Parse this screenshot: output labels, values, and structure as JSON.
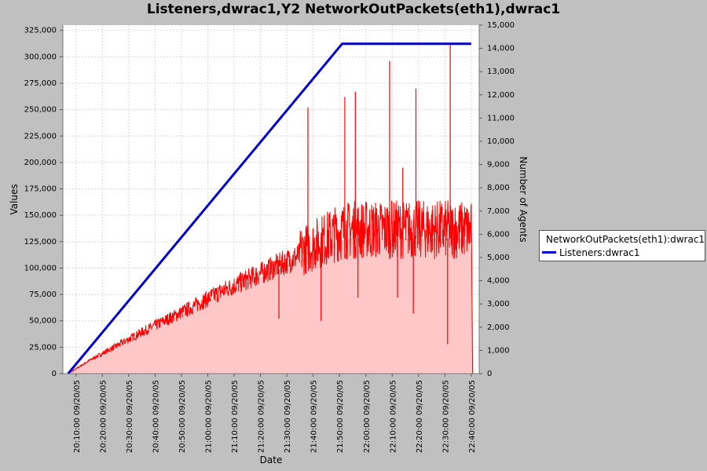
{
  "colors": {
    "background": "#c0c0c0",
    "plot_bg": "#ffffff",
    "packets_line": "#ff0000",
    "packets_fill": "#ffc8c8",
    "listeners_line": "#0000cc"
  },
  "chart_data": {
    "type": "area",
    "title": "Listeners,dwrac1,Y2 NetworkOutPackets(eth1),dwrac1",
    "xlabel": "Date",
    "ylabel": "Values",
    "y2label": "Number of Agents",
    "x_ticks": [
      "20:10:00 09/20/05",
      "20:20:00 09/20/05",
      "20:30:00 09/20/05",
      "20:40:00 09/20/05",
      "20:50:00 09/20/05",
      "21:00:00 09/20/05",
      "21:10:00 09/20/05",
      "21:20:00 09/20/05",
      "21:30:00 09/20/05",
      "21:40:00 09/20/05",
      "21:50:00 09/20/05",
      "22:00:00 09/20/05",
      "22:10:00 09/20/05",
      "22:20:00 09/20/05",
      "22:30:00 09/20/05",
      "22:40:00 09/20/05"
    ],
    "y_ticks": [
      "0",
      "25,000",
      "50,000",
      "75,000",
      "100,000",
      "125,000",
      "150,000",
      "175,000",
      "200,000",
      "225,000",
      "250,000",
      "275,000",
      "300,000",
      "325,000"
    ],
    "y2_ticks": [
      "0",
      "1,000",
      "2,000",
      "3,000",
      "4,000",
      "5,000",
      "6,000",
      "7,000",
      "8,000",
      "9,000",
      "10,000",
      "11,000",
      "12,000",
      "13,000",
      "14,000",
      "15,000"
    ],
    "ylim": [
      0,
      330000
    ],
    "y2lim": [
      0,
      15000
    ],
    "grid": true,
    "legend_position": "right",
    "series": [
      {
        "name": "NetworkOutPackets(eth1):dwrac1",
        "axis": "left",
        "style": "area",
        "x": [
          "20:07:00",
          "20:15:00",
          "20:25:00",
          "20:35:00",
          "20:45:00",
          "20:55:00",
          "21:05:00",
          "21:15:00",
          "21:25:00",
          "21:35:00",
          "21:45:00",
          "21:50:00",
          "21:55:00",
          "22:05:00",
          "22:15:00",
          "22:25:00",
          "22:35:00",
          "22:40:00",
          "22:41:00"
        ],
        "values": [
          0,
          12000,
          25000,
          38000,
          50000,
          62000,
          75000,
          86000,
          97000,
          108000,
          120000,
          126000,
          128000,
          128000,
          128000,
          128000,
          128000,
          127000,
          0
        ]
      },
      {
        "name": "Listeners:dwrac1",
        "axis": "right",
        "style": "line",
        "x": [
          "20:07:00",
          "21:51:00",
          "22:40:00"
        ],
        "values": [
          0,
          14200,
          14200
        ]
      }
    ],
    "spikes": [
      {
        "x": "21:38:00",
        "value": 252000
      },
      {
        "x": "21:52:00",
        "value": 262000
      },
      {
        "x": "21:56:00",
        "value": 267000
      },
      {
        "x": "22:09:00",
        "value": 296000
      },
      {
        "x": "22:19:00",
        "value": 270000
      },
      {
        "x": "22:32:00",
        "value": 313000
      },
      {
        "x": "22:14:00",
        "value": 195000
      },
      {
        "x": "22:12:00",
        "value": 72000
      },
      {
        "x": "22:18:00",
        "value": 57000
      },
      {
        "x": "22:31:00",
        "value": 28000
      },
      {
        "x": "21:43:00",
        "value": 50000
      },
      {
        "x": "21:57:00",
        "value": 72000
      },
      {
        "x": "21:27:00",
        "value": 52000
      }
    ]
  }
}
